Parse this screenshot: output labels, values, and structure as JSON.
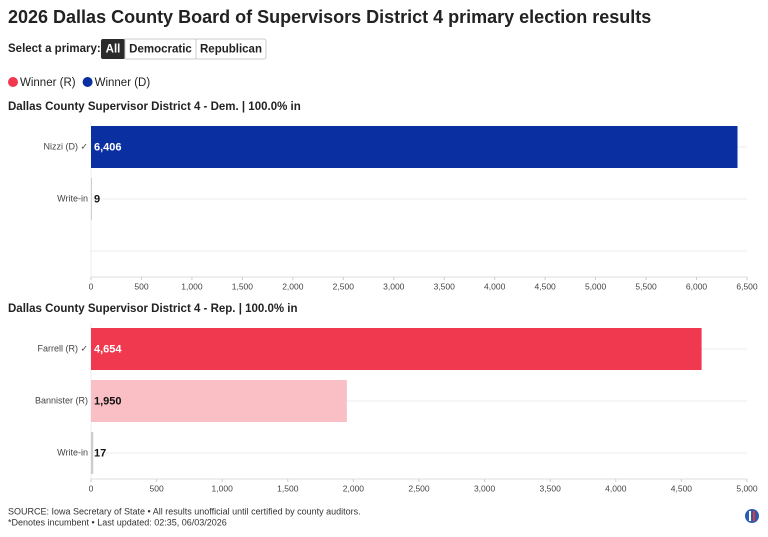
{
  "title": "2026 Dallas County Board of Supervisors District 4 primary election results",
  "selector": {
    "label": "Select a primary:",
    "options": [
      "All",
      "Democratic",
      "Republican"
    ]
  },
  "legend": [
    {
      "label": "Winner (R)",
      "color": "#f0394e"
    },
    {
      "label": "Winner (D)",
      "color": "#0a2fa0"
    }
  ],
  "chart_data": [
    {
      "type": "bar",
      "orientation": "horizontal",
      "title": "Dallas County Supervisor District 4 - Dem. | 100.0% in",
      "categories": [
        "Nizzi (D) ✓",
        "Write-in",
        null
      ],
      "values": [
        6406,
        9,
        null
      ],
      "value_labels": [
        "6,406",
        "9",
        null
      ],
      "colors": [
        "#0a2fa0",
        "#cccccc",
        null
      ],
      "xlim": [
        0,
        6500
      ],
      "xticks": [
        0,
        500,
        {
          "value": 1000,
          "label": "1,000"
        },
        {
          "value": 1500,
          "label": "1,500"
        },
        {
          "value": 2000,
          "label": "2,000"
        },
        {
          "value": 2500,
          "label": "2,500"
        },
        {
          "value": 3000,
          "label": "3,000"
        },
        {
          "value": 3500,
          "label": "3,500"
        },
        {
          "value": 4000,
          "label": "4,000"
        },
        {
          "value": 4500,
          "label": "4,500"
        },
        {
          "value": 5000,
          "label": "5,000"
        },
        {
          "value": 5500,
          "label": "5,500"
        },
        {
          "value": 6000,
          "label": "6,000"
        },
        {
          "value": 6500,
          "label": "6,500"
        }
      ]
    },
    {
      "type": "bar",
      "orientation": "horizontal",
      "title": "Dallas County Supervisor District 4 - Rep. | 100.0% in",
      "categories": [
        "Farrell (R) ✓",
        "Bannister (R)",
        "Write-in"
      ],
      "values": [
        4654,
        1950,
        17
      ],
      "value_labels": [
        "4,654",
        "1,950",
        "17"
      ],
      "colors": [
        "#f0394e",
        "#f9bfc4",
        "#cccccc"
      ],
      "xlim": [
        0,
        5000
      ],
      "xticks": [
        0,
        500,
        {
          "value": 1000,
          "label": "1,000"
        },
        {
          "value": 1500,
          "label": "1,500"
        },
        {
          "value": 2000,
          "label": "2,000"
        },
        {
          "value": 2500,
          "label": "2,500"
        },
        {
          "value": 3000,
          "label": "3,000"
        },
        {
          "value": 3500,
          "label": "3,500"
        },
        {
          "value": 4000,
          "label": "4,000"
        },
        {
          "value": 4500,
          "label": "4,500"
        },
        {
          "value": 5000,
          "label": "5,000"
        }
      ]
    }
  ],
  "footer": [
    "SOURCE: Iowa Secretary of State • All results unofficial until certified by county auditors.",
    "*Denotes incumbent • Last updated: 02:35, 06/03/2026"
  ]
}
